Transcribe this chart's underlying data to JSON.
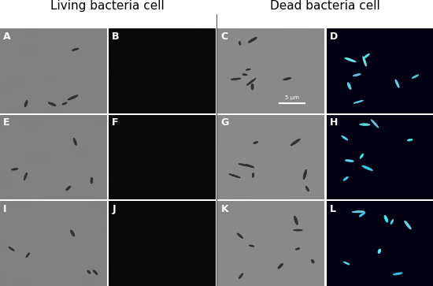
{
  "title_left": "Living bacteria cell",
  "title_right": "Dead bacteria cell",
  "labels": [
    "A",
    "B",
    "C",
    "D",
    "E",
    "F",
    "G",
    "H",
    "I",
    "J",
    "K",
    "L"
  ],
  "nrows": 3,
  "ncols": 4,
  "scale_bar_text": "5 μm",
  "panel_colors": {
    "bright_field": [
      130,
      140,
      135
    ],
    "dark_field": [
      5,
      10,
      20
    ],
    "fluorescent": [
      0,
      5,
      15
    ]
  },
  "living_cols": [
    0,
    1
  ],
  "dead_cols": [
    2,
    3
  ],
  "fluor_cols": [
    1,
    3
  ],
  "bf_colors_living": {
    "A": [
      125,
      135,
      130
    ],
    "E": [
      120,
      130,
      125
    ],
    "I": [
      130,
      140,
      135
    ]
  },
  "label_color": "#ffffff",
  "title_color": "#000000",
  "background_color": "#ffffff",
  "figsize": [
    5.5,
    3.63
  ],
  "dpi": 100
}
